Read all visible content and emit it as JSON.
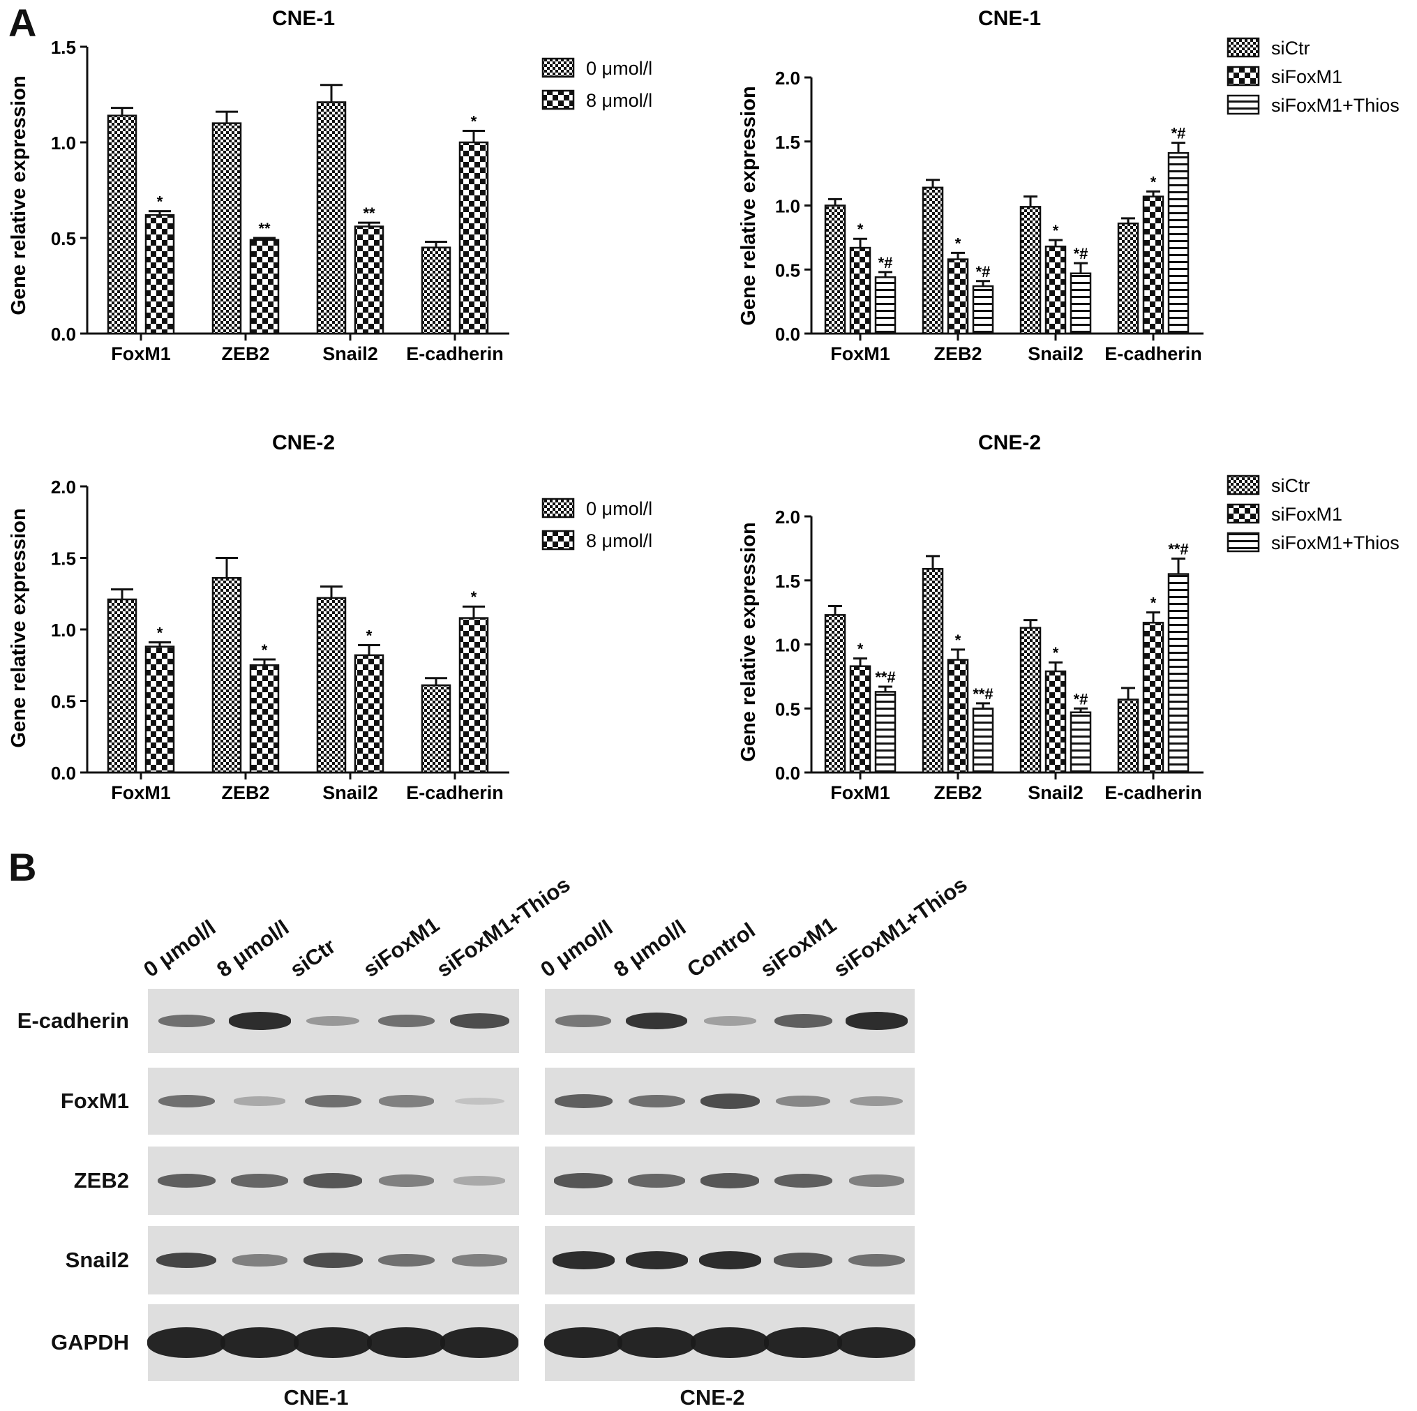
{
  "panel_labels": {
    "a": "A",
    "b": "B"
  },
  "colors": {
    "bar_fill": "#ffffff",
    "bar_stroke": "#111111",
    "axis": "#111111",
    "band": "#1a1a1a",
    "strip_bg": "#dedede"
  },
  "chart_data": [
    {
      "type": "bar",
      "title": "CNE-1",
      "ylabel": "Gene relative expression",
      "ylim": [
        0,
        1.5
      ],
      "yticks": [
        "0.0",
        "0.5",
        "1.0",
        "1.5"
      ],
      "categories": [
        "FoxM1",
        "ZEB2",
        "Snail2",
        "E-cadherin"
      ],
      "series": [
        {
          "name": "0 μmol/l",
          "pattern": "fine-check",
          "values": [
            1.14,
            1.1,
            1.21,
            0.45
          ],
          "errors": [
            0.04,
            0.06,
            0.09,
            0.03
          ],
          "marks": [
            "",
            "",
            "",
            ""
          ]
        },
        {
          "name": "8 μmol/l",
          "pattern": "coarse-check",
          "values": [
            0.62,
            0.49,
            0.56,
            1.0
          ],
          "errors": [
            0.02,
            0.01,
            0.02,
            0.06
          ],
          "marks": [
            "*",
            "**",
            "**",
            "*"
          ]
        }
      ],
      "legend_position": "right"
    },
    {
      "type": "bar",
      "title": "CNE-1",
      "ylabel": "Gene relative expression",
      "ylim": [
        0,
        2.0
      ],
      "yticks": [
        "0.0",
        "0.5",
        "1.0",
        "1.5",
        "2.0"
      ],
      "categories": [
        "FoxM1",
        "ZEB2",
        "Snail2",
        "E-cadherin"
      ],
      "series": [
        {
          "name": "siCtr",
          "pattern": "fine-check",
          "values": [
            1.0,
            1.14,
            0.99,
            0.86
          ],
          "errors": [
            0.05,
            0.06,
            0.08,
            0.04
          ],
          "marks": [
            "",
            "",
            "",
            ""
          ]
        },
        {
          "name": "siFoxM1",
          "pattern": "coarse-check",
          "values": [
            0.67,
            0.58,
            0.68,
            1.07
          ],
          "errors": [
            0.07,
            0.05,
            0.05,
            0.04
          ],
          "marks": [
            "*",
            "*",
            "*",
            "*"
          ]
        },
        {
          "name": "siFoxM1+Thios",
          "pattern": "hlines",
          "values": [
            0.44,
            0.37,
            0.47,
            1.41
          ],
          "errors": [
            0.04,
            0.04,
            0.08,
            0.08
          ],
          "marks": [
            "*#",
            "*#",
            "*#",
            "*#"
          ]
        }
      ],
      "legend_position": "top-right"
    },
    {
      "type": "bar",
      "title": "CNE-2",
      "ylabel": "Gene relative expression",
      "ylim": [
        0,
        2.0
      ],
      "yticks": [
        "0.0",
        "0.5",
        "1.0",
        "1.5",
        "2.0"
      ],
      "categories": [
        "FoxM1",
        "ZEB2",
        "Snail2",
        "E-cadherin"
      ],
      "series": [
        {
          "name": "0 μmol/l",
          "pattern": "fine-check",
          "values": [
            1.21,
            1.36,
            1.22,
            0.61
          ],
          "errors": [
            0.07,
            0.14,
            0.08,
            0.05
          ],
          "marks": [
            "",
            "",
            "",
            ""
          ]
        },
        {
          "name": "8 μmol/l",
          "pattern": "coarse-check",
          "values": [
            0.88,
            0.75,
            0.82,
            1.08
          ],
          "errors": [
            0.03,
            0.04,
            0.07,
            0.08
          ],
          "marks": [
            "*",
            "*",
            "*",
            "*"
          ]
        }
      ],
      "legend_position": "right"
    },
    {
      "type": "bar",
      "title": "CNE-2",
      "ylabel": "Gene relative expression",
      "ylim": [
        0,
        2.0
      ],
      "yticks": [
        "0.0",
        "0.5",
        "1.0",
        "1.5",
        "2.0"
      ],
      "categories": [
        "FoxM1",
        "ZEB2",
        "Snail2",
        "E-cadherin"
      ],
      "series": [
        {
          "name": "siCtr",
          "pattern": "fine-check",
          "values": [
            1.23,
            1.59,
            1.13,
            0.57
          ],
          "errors": [
            0.07,
            0.1,
            0.06,
            0.09
          ],
          "marks": [
            "",
            "",
            "",
            ""
          ]
        },
        {
          "name": "siFoxM1",
          "pattern": "coarse-check",
          "values": [
            0.83,
            0.88,
            0.79,
            1.17
          ],
          "errors": [
            0.06,
            0.08,
            0.07,
            0.08
          ],
          "marks": [
            "*",
            "*",
            "*",
            "*"
          ]
        },
        {
          "name": "siFoxM1+Thios",
          "pattern": "hlines",
          "values": [
            0.63,
            0.5,
            0.47,
            1.55
          ],
          "errors": [
            0.04,
            0.04,
            0.03,
            0.12
          ],
          "marks": [
            "**#",
            "**#",
            "*#",
            "**#"
          ]
        }
      ],
      "legend_position": "top-right"
    }
  ],
  "blot": {
    "lanes_left": [
      "0 μmol/l",
      "8 μmol/l",
      "siCtr",
      "siFoxM1",
      "siFoxM1+Thios"
    ],
    "lanes_right": [
      "0 μmol/l",
      "8 μmol/l",
      "Control",
      "siFoxM1",
      "siFoxM1+Thios"
    ],
    "rows": [
      "E-cadherin",
      "FoxM1",
      "ZEB2",
      "Snail2",
      "GAPDH"
    ],
    "cell_lines": [
      "CNE-1",
      "CNE-2"
    ],
    "band_intensity_left": [
      [
        0.55,
        0.95,
        0.3,
        0.55,
        0.75
      ],
      [
        0.55,
        0.2,
        0.55,
        0.45,
        0.05
      ],
      [
        0.65,
        0.6,
        0.7,
        0.45,
        0.2
      ],
      [
        0.8,
        0.45,
        0.75,
        0.55,
        0.45
      ],
      [
        1.0,
        1.0,
        1.0,
        1.0,
        1.0
      ]
    ],
    "band_intensity_right": [
      [
        0.5,
        0.9,
        0.25,
        0.65,
        0.95
      ],
      [
        0.65,
        0.55,
        0.75,
        0.4,
        0.3
      ],
      [
        0.7,
        0.6,
        0.7,
        0.65,
        0.45
      ],
      [
        0.95,
        0.95,
        0.95,
        0.7,
        0.55
      ],
      [
        1.0,
        1.0,
        1.0,
        1.0,
        1.0
      ]
    ]
  }
}
